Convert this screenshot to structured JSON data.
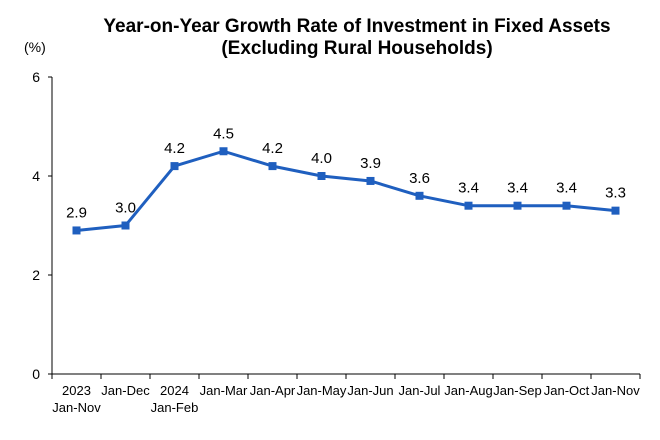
{
  "chart_data": {
    "type": "line",
    "title_lines": [
      "Year-on-Year Growth Rate of Investment in Fixed Assets",
      "(Excluding Rural Households)"
    ],
    "unit_label": "(%)",
    "categories": [
      [
        "2023",
        "Jan-Nov"
      ],
      [
        "Jan-Dec"
      ],
      [
        "2024",
        "Jan-Feb"
      ],
      [
        "Jan-Mar"
      ],
      [
        "Jan-Apr"
      ],
      [
        "Jan-May"
      ],
      [
        "Jan-Jun"
      ],
      [
        "Jan-Jul"
      ],
      [
        "Jan-Aug"
      ],
      [
        "Jan-Sep"
      ],
      [
        "Jan-Oct"
      ],
      [
        "Jan-Nov"
      ]
    ],
    "values": [
      2.9,
      3.0,
      4.2,
      4.5,
      4.2,
      4.0,
      3.9,
      3.6,
      3.4,
      3.4,
      3.4,
      3.3
    ],
    "value_labels": [
      "2.9",
      "3.0",
      "4.2",
      "4.5",
      "4.2",
      "4.0",
      "3.9",
      "3.6",
      "3.4",
      "3.4",
      "3.4",
      "3.3"
    ],
    "ylim": [
      0,
      6
    ],
    "yticks": [
      0,
      2,
      4,
      6
    ],
    "ytick_labels": [
      "0",
      "2",
      "4",
      "6"
    ],
    "grid": false,
    "line_color": "#1f5fbf",
    "marker": "square"
  }
}
